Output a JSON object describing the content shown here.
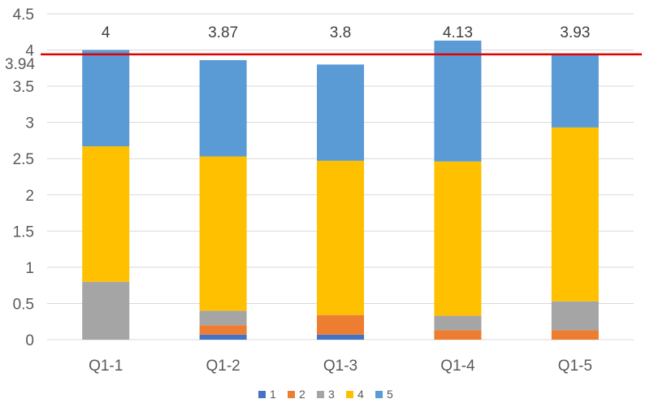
{
  "chart_data": {
    "type": "bar",
    "stacked": true,
    "categories": [
      "Q1-1",
      "Q1-2",
      "Q1-3",
      "Q1-4",
      "Q1-5"
    ],
    "series": [
      {
        "name": "1",
        "color": "#4472c4",
        "values": [
          0,
          0.07,
          0.07,
          0,
          0
        ]
      },
      {
        "name": "2",
        "color": "#ed7d31",
        "values": [
          0,
          0.13,
          0.27,
          0.13,
          0.13
        ]
      },
      {
        "name": "3",
        "color": "#a5a5a5",
        "values": [
          0.8,
          0.2,
          0,
          0.2,
          0.4
        ]
      },
      {
        "name": "4",
        "color": "#ffc000",
        "values": [
          1.87,
          2.13,
          2.13,
          2.13,
          2.4
        ]
      },
      {
        "name": "5",
        "color": "#5b9bd5",
        "values": [
          1.33,
          1.33,
          1.33,
          1.67,
          1.0
        ]
      }
    ],
    "totals_labels": [
      "4",
      "3.87",
      "3.8",
      "4.13",
      "3.93"
    ],
    "reference_line": {
      "value": 3.94,
      "label": "3.94",
      "color": "#e00000"
    },
    "ylim": [
      0,
      4.5
    ],
    "yticks": [
      "0",
      "0.5",
      "1",
      "1.5",
      "2",
      "2.5",
      "3",
      "3.5",
      "4",
      "4.5"
    ],
    "grid": true,
    "legend_position": "bottom",
    "title": "",
    "xlabel": "",
    "ylabel": ""
  }
}
